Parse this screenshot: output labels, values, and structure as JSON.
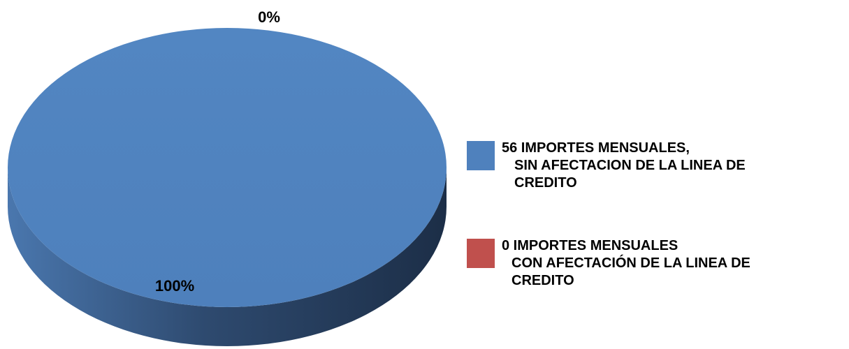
{
  "chart_data": {
    "type": "pie",
    "style": "3d",
    "categories": [
      "56 IMPORTES MENSUALES, SIN AFECTACION DE LA LINEA DE CREDITO",
      "0 IMPORTES MENSUALES CON AFECTACIÓN DE LA LINEA DE CREDITO"
    ],
    "values": [
      56,
      0
    ],
    "percent_labels": [
      "100%",
      "0%"
    ],
    "colors": [
      "#4f81bd",
      "#c0504d"
    ],
    "legend_position": "right",
    "legend": [
      {
        "lines": [
          "56 IMPORTES MENSUALES,",
          "SIN AFECTACION DE LA LINEA DE",
          "CREDITO"
        ],
        "color": "#4f81bd"
      },
      {
        "lines": [
          "0 IMPORTES MENSUALES",
          "CON AFECTACIÓN DE LA LINEA DE",
          "CREDITO"
        ],
        "color": "#c0504d"
      }
    ]
  }
}
